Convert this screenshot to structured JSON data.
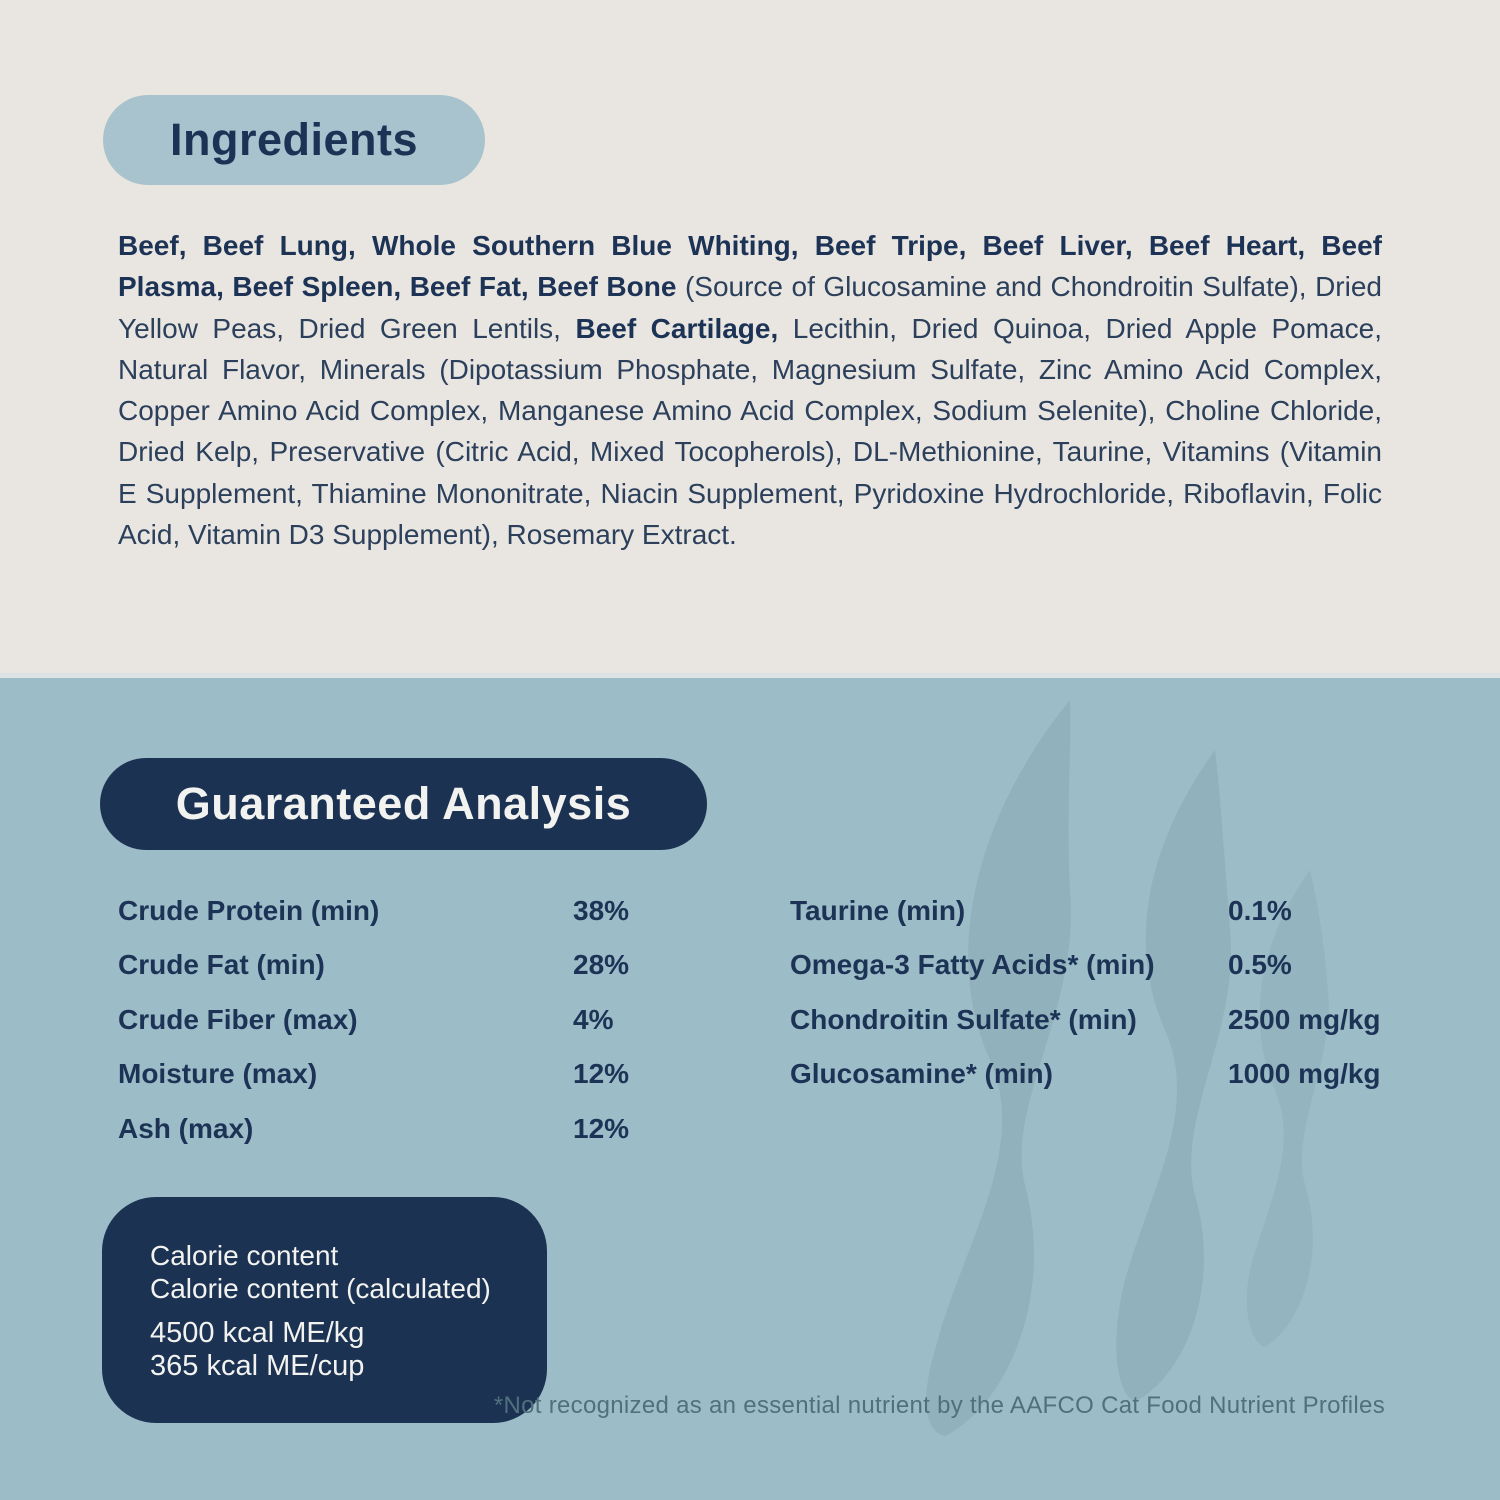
{
  "page": {
    "background_top": "#e9e6e1",
    "background_bottom": "#9cbcc8",
    "navy": "#1c3252",
    "pill_light_blue": "#a8c3cd",
    "text_navy": "#1d3356",
    "footnote_color": "#51707e"
  },
  "icons": {
    "watermark": "smoke-flame-watermark"
  },
  "ingredients": {
    "title": "Ingredients",
    "segments": [
      {
        "bold": true,
        "text": "Beef, Beef Lung, Whole Southern Blue Whiting, Beef Tripe, Beef Liver, Beef Heart, Beef Plasma, Beef Spleen, Beef Fat, Beef Bone"
      },
      {
        "bold": false,
        "text": " (Source of Glucosamine and Chondroitin Sulfate), Dried Yellow Peas, Dried Green Lentils, "
      },
      {
        "bold": true,
        "text": "Beef Cartilage,"
      },
      {
        "bold": false,
        "text": " Lecithin, Dried Quinoa, Dried Apple Pomace, Natural Flavor, Minerals (Dipotassium Phosphate, Magnesium Sulfate, Zinc Amino Acid Complex, Copper Amino Acid Complex, Manganese Amino Acid Complex, Sodium Selenite), Choline Chloride, Dried Kelp, Preservative (Citric Acid, Mixed Tocopherols), DL-Methionine, Taurine, Vitamins (Vitamin E Supplement, Thiamine Mononitrate, Niacin Supplement, Pyridoxine Hydrochloride, Riboflavin, Folic Acid, Vitamin D3 Supplement), Rosemary Extract."
      }
    ]
  },
  "guaranteed_analysis": {
    "title": "Guaranteed Analysis",
    "left_rows": [
      {
        "label": "Crude Protein (min)",
        "value": "38%"
      },
      {
        "label": "Crude Fat (min)",
        "value": "28%"
      },
      {
        "label": "Crude Fiber (max)",
        "value": "4%"
      },
      {
        "label": "Moisture (max)",
        "value": "12%"
      },
      {
        "label": "Ash (max)",
        "value": "12%"
      }
    ],
    "right_rows": [
      {
        "label": "Taurine (min)",
        "value": "0.1%"
      },
      {
        "label": "Omega-3 Fatty Acids* (min)",
        "value": "0.5%"
      },
      {
        "label": "Chondroitin Sulfate* (min)",
        "value": "2500 mg/kg"
      },
      {
        "label": "Glucosamine* (min)",
        "value": "1000 mg/kg"
      }
    ]
  },
  "calorie_box": {
    "lines_top": [
      "Calorie content",
      "Calorie content (calculated)"
    ],
    "lines_bottom": [
      "4500 kcal ME/kg",
      "365 kcal ME/cup"
    ]
  },
  "footnote": "*Not recognized as an essential nutrient by the AAFCO Cat Food Nutrient Profiles"
}
